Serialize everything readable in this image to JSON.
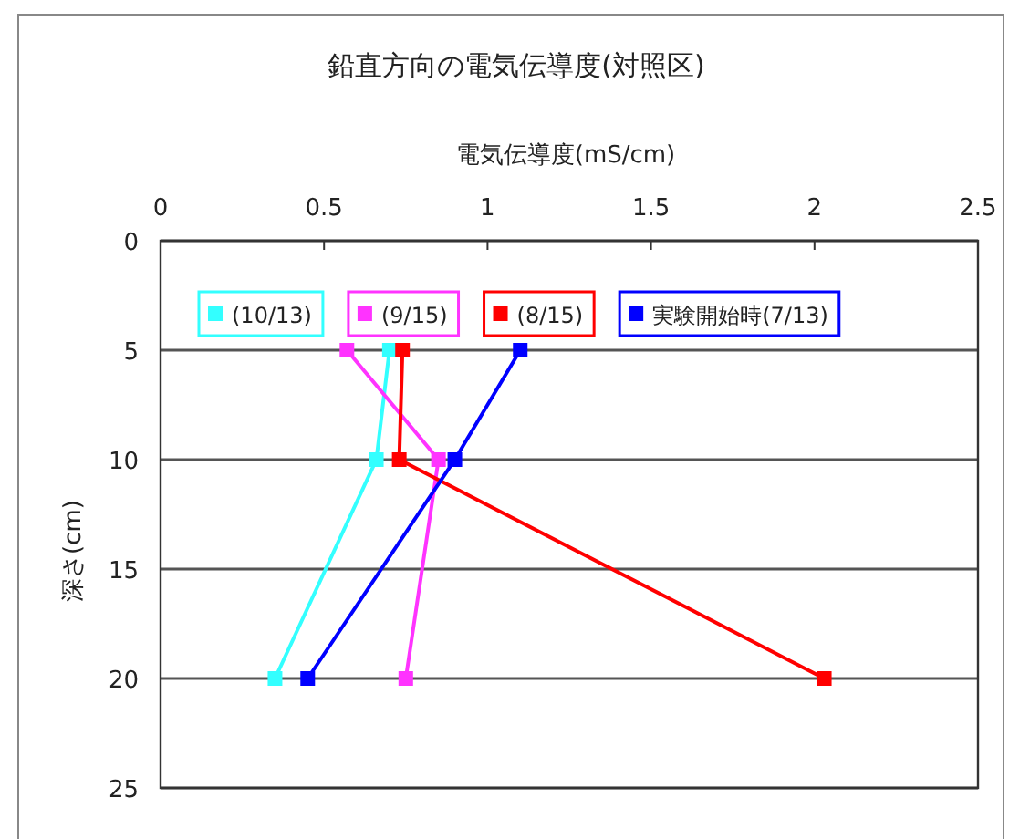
{
  "chart_data": {
    "type": "line",
    "title": "鉛直方向の電気伝導度(対照区)",
    "xlabel": "電気伝導度(mS/cm)",
    "ylabel": "深さ(cm)",
    "xlim": [
      0,
      2.5
    ],
    "xticks": [
      0,
      0.5,
      1,
      1.5,
      2,
      2.5
    ],
    "ylim": [
      25,
      0
    ],
    "yticks": [
      0,
      5,
      10,
      15,
      20,
      25
    ],
    "grid": "y",
    "legend": "top",
    "marker": "square",
    "line_style": "solid",
    "series": [
      {
        "name": "(10/13)",
        "color": "#33ffff",
        "x": [
          0.7,
          0.66,
          0.35
        ],
        "values": [
          5,
          10,
          20
        ]
      },
      {
        "name": "(9/15)",
        "color": "#ff33ff",
        "x": [
          0.57,
          0.85,
          0.75
        ],
        "values": [
          5,
          10,
          20
        ]
      },
      {
        "name": "(8/15)",
        "color": "#ff0000",
        "x": [
          0.74,
          0.73,
          2.03
        ],
        "values": [
          5,
          10,
          20
        ]
      },
      {
        "name": "実験開始時(7/13)",
        "color": "#0000ff",
        "x": [
          1.1,
          0.9,
          0.45
        ],
        "values": [
          5,
          10,
          20
        ]
      }
    ]
  }
}
